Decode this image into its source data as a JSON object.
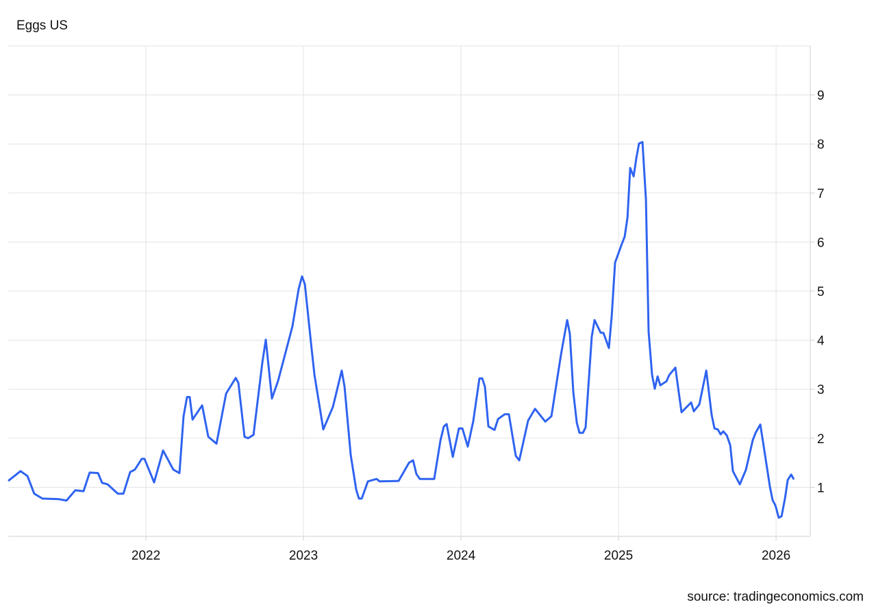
{
  "chart_data": {
    "type": "line",
    "title": "Eggs US",
    "source": "source: tradingeconomics.com",
    "xlim": [
      2021.126,
      2026.217
    ],
    "xticks": [
      2022,
      2023,
      2024,
      2025,
      2026
    ],
    "ylim": [
      0,
      10
    ],
    "yticks": [
      1,
      2,
      3,
      4,
      5,
      6,
      7,
      8,
      9
    ],
    "grid": true,
    "y_axis_side": "right",
    "x": [
      2021.126,
      2021.204,
      2021.248,
      2021.291,
      2021.343,
      2021.443,
      2021.496,
      2021.552,
      2021.604,
      2021.643,
      2021.696,
      2021.722,
      2021.757,
      2021.822,
      2021.857,
      2021.9,
      2021.93,
      2021.974,
      2021.991,
      2022.052,
      2022.109,
      2022.174,
      2022.213,
      2022.239,
      2022.261,
      2022.278,
      2022.296,
      2022.357,
      2022.396,
      2022.448,
      2022.509,
      2022.57,
      2022.587,
      2022.626,
      2022.648,
      2022.683,
      2022.739,
      2022.761,
      2022.8,
      2022.839,
      2022.93,
      2022.97,
      2022.991,
      2023.009,
      2023.052,
      2023.07,
      2023.126,
      2023.187,
      2023.243,
      2023.261,
      2023.3,
      2023.335,
      2023.352,
      2023.37,
      2023.409,
      2023.465,
      2023.483,
      2023.604,
      2023.67,
      2023.696,
      2023.717,
      2023.739,
      2023.83,
      2023.87,
      2023.891,
      2023.909,
      2023.948,
      2023.987,
      2024.009,
      2024.043,
      2024.078,
      2024.117,
      2024.135,
      2024.152,
      2024.174,
      2024.213,
      2024.235,
      2024.278,
      2024.304,
      2024.348,
      2024.37,
      2024.426,
      2024.47,
      2024.535,
      2024.574,
      2024.635,
      2024.674,
      2024.691,
      2024.713,
      2024.735,
      2024.752,
      2024.774,
      2024.791,
      2024.83,
      2024.848,
      2024.887,
      2024.904,
      2024.939,
      2024.957,
      2024.978,
      2025.022,
      2025.039,
      2025.057,
      2025.074,
      2025.096,
      2025.113,
      2025.13,
      2025.152,
      2025.174,
      2025.191,
      2025.213,
      2025.23,
      2025.248,
      2025.265,
      2025.304,
      2025.322,
      2025.361,
      2025.383,
      2025.4,
      2025.461,
      2025.478,
      2025.513,
      2025.557,
      2025.591,
      2025.609,
      2025.63,
      2025.648,
      2025.665,
      2025.687,
      2025.709,
      2025.726,
      2025.77,
      2025.809,
      2025.852,
      2025.87,
      2025.9,
      2025.917,
      2025.939,
      2025.961,
      2025.978,
      2025.996,
      2026.017,
      2026.035,
      2026.057,
      2026.074,
      2026.096,
      2026.113
    ],
    "series": [
      {
        "name": "Eggs US",
        "color": "#2f63f0",
        "values": [
          1.13,
          1.33,
          1.23,
          0.87,
          0.77,
          0.76,
          0.73,
          0.94,
          0.92,
          1.3,
          1.29,
          1.09,
          1.06,
          0.87,
          0.87,
          1.31,
          1.36,
          1.58,
          1.58,
          1.1,
          1.75,
          1.36,
          1.29,
          2.45,
          2.84,
          2.84,
          2.38,
          2.67,
          2.03,
          1.89,
          2.91,
          3.23,
          3.13,
          2.03,
          2.0,
          2.07,
          3.54,
          4.01,
          2.81,
          3.17,
          4.28,
          5.05,
          5.3,
          5.14,
          3.82,
          3.29,
          2.18,
          2.64,
          3.38,
          3.05,
          1.66,
          0.95,
          0.77,
          0.77,
          1.12,
          1.17,
          1.12,
          1.13,
          1.5,
          1.55,
          1.27,
          1.17,
          1.17,
          1.96,
          2.24,
          2.29,
          1.62,
          2.2,
          2.2,
          1.83,
          2.35,
          3.22,
          3.22,
          3.05,
          2.24,
          2.17,
          2.39,
          2.49,
          2.49,
          1.64,
          1.55,
          2.36,
          2.6,
          2.34,
          2.45,
          3.71,
          4.41,
          4.13,
          2.94,
          2.32,
          2.11,
          2.11,
          2.22,
          4.07,
          4.41,
          4.15,
          4.15,
          3.84,
          4.5,
          5.58,
          5.97,
          6.11,
          6.5,
          7.51,
          7.34,
          7.71,
          8.01,
          8.04,
          6.87,
          4.17,
          3.29,
          3.01,
          3.26,
          3.08,
          3.16,
          3.29,
          3.44,
          2.92,
          2.53,
          2.73,
          2.55,
          2.69,
          3.38,
          2.48,
          2.2,
          2.18,
          2.08,
          2.14,
          2.06,
          1.86,
          1.33,
          1.06,
          1.36,
          1.96,
          2.11,
          2.28,
          1.93,
          1.47,
          1.01,
          0.74,
          0.63,
          0.38,
          0.41,
          0.78,
          1.15,
          1.26,
          1.16
        ]
      }
    ]
  }
}
